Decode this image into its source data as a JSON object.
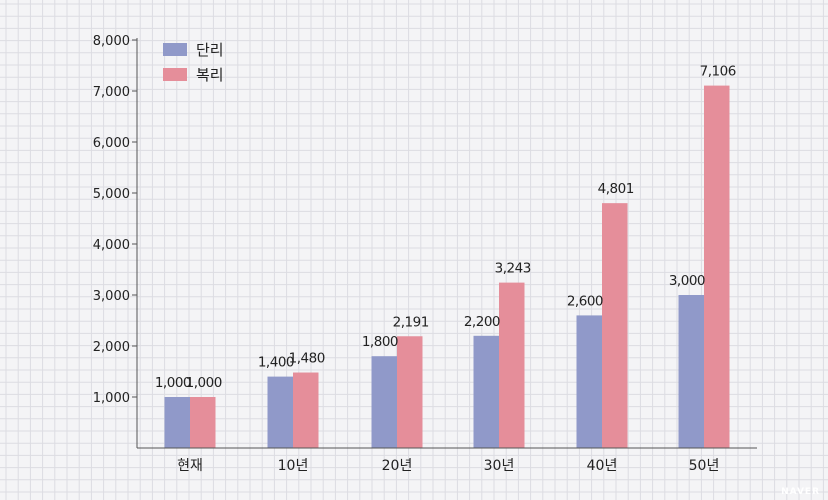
{
  "chart_data": {
    "type": "bar",
    "categories": [
      "현재",
      "10년",
      "20년",
      "30년",
      "40년",
      "50년"
    ],
    "series": [
      {
        "name": "단리",
        "color": "#9099c9",
        "values": [
          1000,
          1400,
          1800,
          2200,
          2600,
          3000
        ]
      },
      {
        "name": "복리",
        "color": "#e58e9a",
        "values": [
          1000,
          1480,
          2191,
          3243,
          4801,
          7106
        ]
      }
    ],
    "data_labels": [
      [
        "1,000",
        "1,400",
        "1,800",
        "2,200",
        "2,600",
        "3,000"
      ],
      [
        "1,000",
        "1,480",
        "2,191",
        "3,243",
        "4,801",
        "7,106"
      ]
    ],
    "y_ticks": [
      "1,000",
      "2,000",
      "3,000",
      "4,000",
      "5,000",
      "6,000",
      "7,000",
      "8,000"
    ],
    "ylim": [
      0,
      8000
    ],
    "title": "",
    "xlabel": "",
    "ylabel": "",
    "legend_position": "top-left",
    "grid": true
  },
  "watermark": "NAVER"
}
